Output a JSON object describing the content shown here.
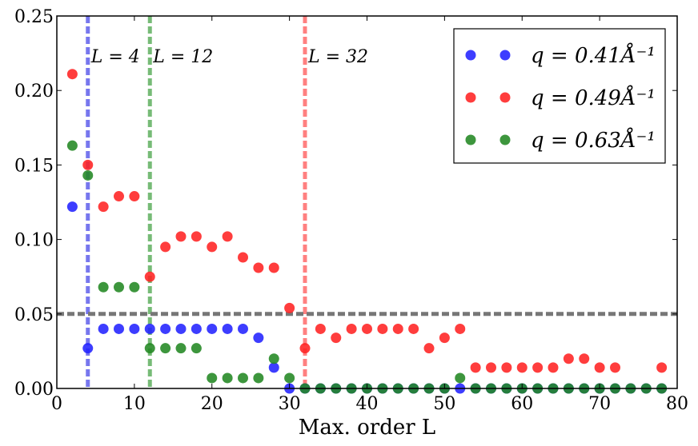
{
  "chart_data": {
    "type": "scatter",
    "title": "",
    "xlabel": "Max. order L",
    "ylabel": "",
    "xlim": [
      0,
      80
    ],
    "ylim": [
      0,
      0.25
    ],
    "xticks": [
      0,
      10,
      20,
      30,
      40,
      50,
      60,
      70,
      80
    ],
    "yticks": [
      0.0,
      0.05,
      0.1,
      0.15,
      0.2,
      0.25
    ],
    "xtick_labels": [
      "0",
      "10",
      "20",
      "30",
      "40",
      "50",
      "60",
      "70",
      "80"
    ],
    "ytick_labels": [
      "0.00",
      "0.05",
      "0.10",
      "0.15",
      "0.20",
      "0.25"
    ],
    "grid": false,
    "legend_position": "top-right",
    "hline": {
      "y": 0.05,
      "color": "#777777"
    },
    "vlines": [
      {
        "x": 4,
        "label": "L = 4",
        "color": "#7777ee"
      },
      {
        "x": 12,
        "label": "L = 12",
        "color": "#77bb77"
      },
      {
        "x": 32,
        "label": "L = 32",
        "color": "#ff8080"
      }
    ],
    "series": [
      {
        "name": "q = 0.41Å⁻¹",
        "color": "#2222ff",
        "x": [
          2,
          4,
          6,
          8,
          10,
          12,
          14,
          16,
          18,
          20,
          22,
          24,
          26,
          28,
          30,
          32,
          34,
          36,
          38,
          40,
          42,
          44,
          46,
          48,
          50,
          52,
          54,
          56,
          58,
          60,
          62,
          64,
          66,
          68,
          70,
          72,
          74,
          76,
          78
        ],
        "y": [
          0.122,
          0.027,
          0.04,
          0.04,
          0.04,
          0.04,
          0.04,
          0.04,
          0.04,
          0.04,
          0.04,
          0.04,
          0.034,
          0.014,
          0,
          0,
          0,
          0,
          0,
          0,
          0,
          0,
          0,
          0,
          0,
          0,
          0,
          0,
          0,
          0,
          0,
          0,
          0,
          0,
          0,
          0,
          0,
          0,
          0
        ]
      },
      {
        "name": "q = 0.49Å⁻¹",
        "color": "#ff2222",
        "x": [
          2,
          4,
          6,
          8,
          10,
          12,
          14,
          16,
          18,
          20,
          22,
          24,
          26,
          28,
          30,
          32,
          34,
          36,
          38,
          40,
          42,
          44,
          46,
          48,
          50,
          52,
          54,
          56,
          58,
          60,
          62,
          64,
          66,
          68,
          70,
          72,
          78
        ],
        "y": [
          0.211,
          0.15,
          0.122,
          0.129,
          0.129,
          0.075,
          0.095,
          0.102,
          0.102,
          0.095,
          0.102,
          0.088,
          0.081,
          0.081,
          0.054,
          0.027,
          0.04,
          0.034,
          0.04,
          0.04,
          0.04,
          0.04,
          0.04,
          0.027,
          0.034,
          0.04,
          0.014,
          0.014,
          0.014,
          0.014,
          0.014,
          0.014,
          0.02,
          0.02,
          0.014,
          0.014,
          0.014
        ]
      },
      {
        "name": "q = 0.63Å⁻¹",
        "color": "#228822",
        "x": [
          2,
          4,
          6,
          8,
          10,
          12,
          14,
          16,
          18,
          20,
          22,
          24,
          26,
          28,
          30,
          32,
          34,
          36,
          38,
          40,
          42,
          44,
          46,
          48,
          50,
          52,
          54,
          56,
          58,
          60,
          62,
          64,
          66,
          68,
          70,
          72,
          74,
          76,
          78
        ],
        "y": [
          0.163,
          0.143,
          0.068,
          0.068,
          0.068,
          0.027,
          0.027,
          0.027,
          0.027,
          0.007,
          0.007,
          0.007,
          0.007,
          0.02,
          0.007,
          0,
          0,
          0,
          0,
          0,
          0,
          0,
          0,
          0,
          0,
          0.007,
          0,
          0,
          0,
          0,
          0,
          0,
          0,
          0,
          0,
          0,
          0,
          0,
          0
        ]
      }
    ]
  }
}
